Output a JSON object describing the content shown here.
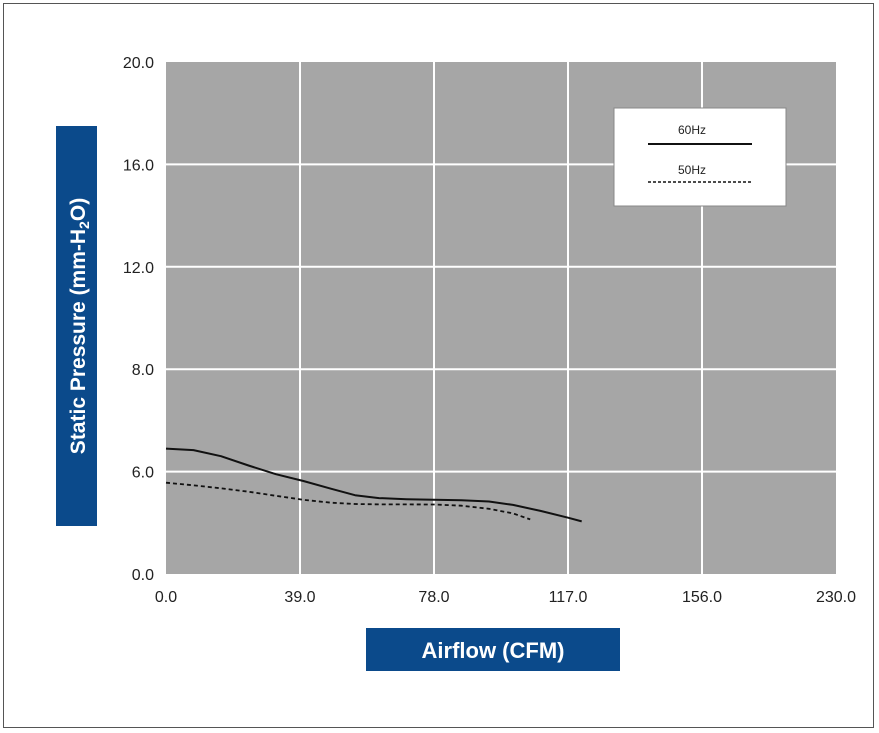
{
  "chart_data": {
    "type": "line",
    "xlabel": "Airflow (CFM)",
    "ylabel": "Static Pressure (mm-H2O)",
    "ylabel_parts": {
      "main": "Static Pressure (mm-H",
      "sub": "2",
      "tail": "O)"
    },
    "x_ticks": [
      0.0,
      39.0,
      78.0,
      117.0,
      156.0,
      230.0
    ],
    "x_tick_labels": [
      "0.0",
      "39.0",
      "78.0",
      "117.0",
      "156.0",
      "230.0"
    ],
    "y_ticks": [
      0.0,
      6.0,
      8.0,
      12.0,
      16.0,
      20.0
    ],
    "y_tick_labels": [
      "0.0",
      "6.0",
      "8.0",
      "12.0",
      "16.0",
      "20.0"
    ],
    "grid": true,
    "plot_background": "#a6a6a6",
    "grid_color": "#ffffff",
    "axis_title_background": "#0b4a8b",
    "legend_position": "top-right",
    "series": [
      {
        "name": "60Hz",
        "style": "solid",
        "color": "#111111",
        "x": [
          0,
          8,
          16,
          24,
          32,
          40,
          48,
          55,
          62,
          70,
          78,
          86,
          94,
          101,
          109,
          117,
          121
        ],
        "y": [
          6.45,
          6.42,
          6.3,
          6.12,
          5.85,
          5.45,
          5.0,
          4.62,
          4.45,
          4.38,
          4.35,
          4.32,
          4.25,
          4.05,
          3.7,
          3.3,
          3.08
        ]
      },
      {
        "name": "50Hz",
        "style": "dashed",
        "color": "#111111",
        "x": [
          0,
          8,
          16,
          24,
          32,
          40,
          48,
          55,
          62,
          70,
          78,
          86,
          94,
          101,
          106
        ],
        "y": [
          5.35,
          5.2,
          5.02,
          4.82,
          4.58,
          4.35,
          4.18,
          4.1,
          4.08,
          4.08,
          4.07,
          4.0,
          3.82,
          3.55,
          3.2
        ]
      }
    ]
  }
}
